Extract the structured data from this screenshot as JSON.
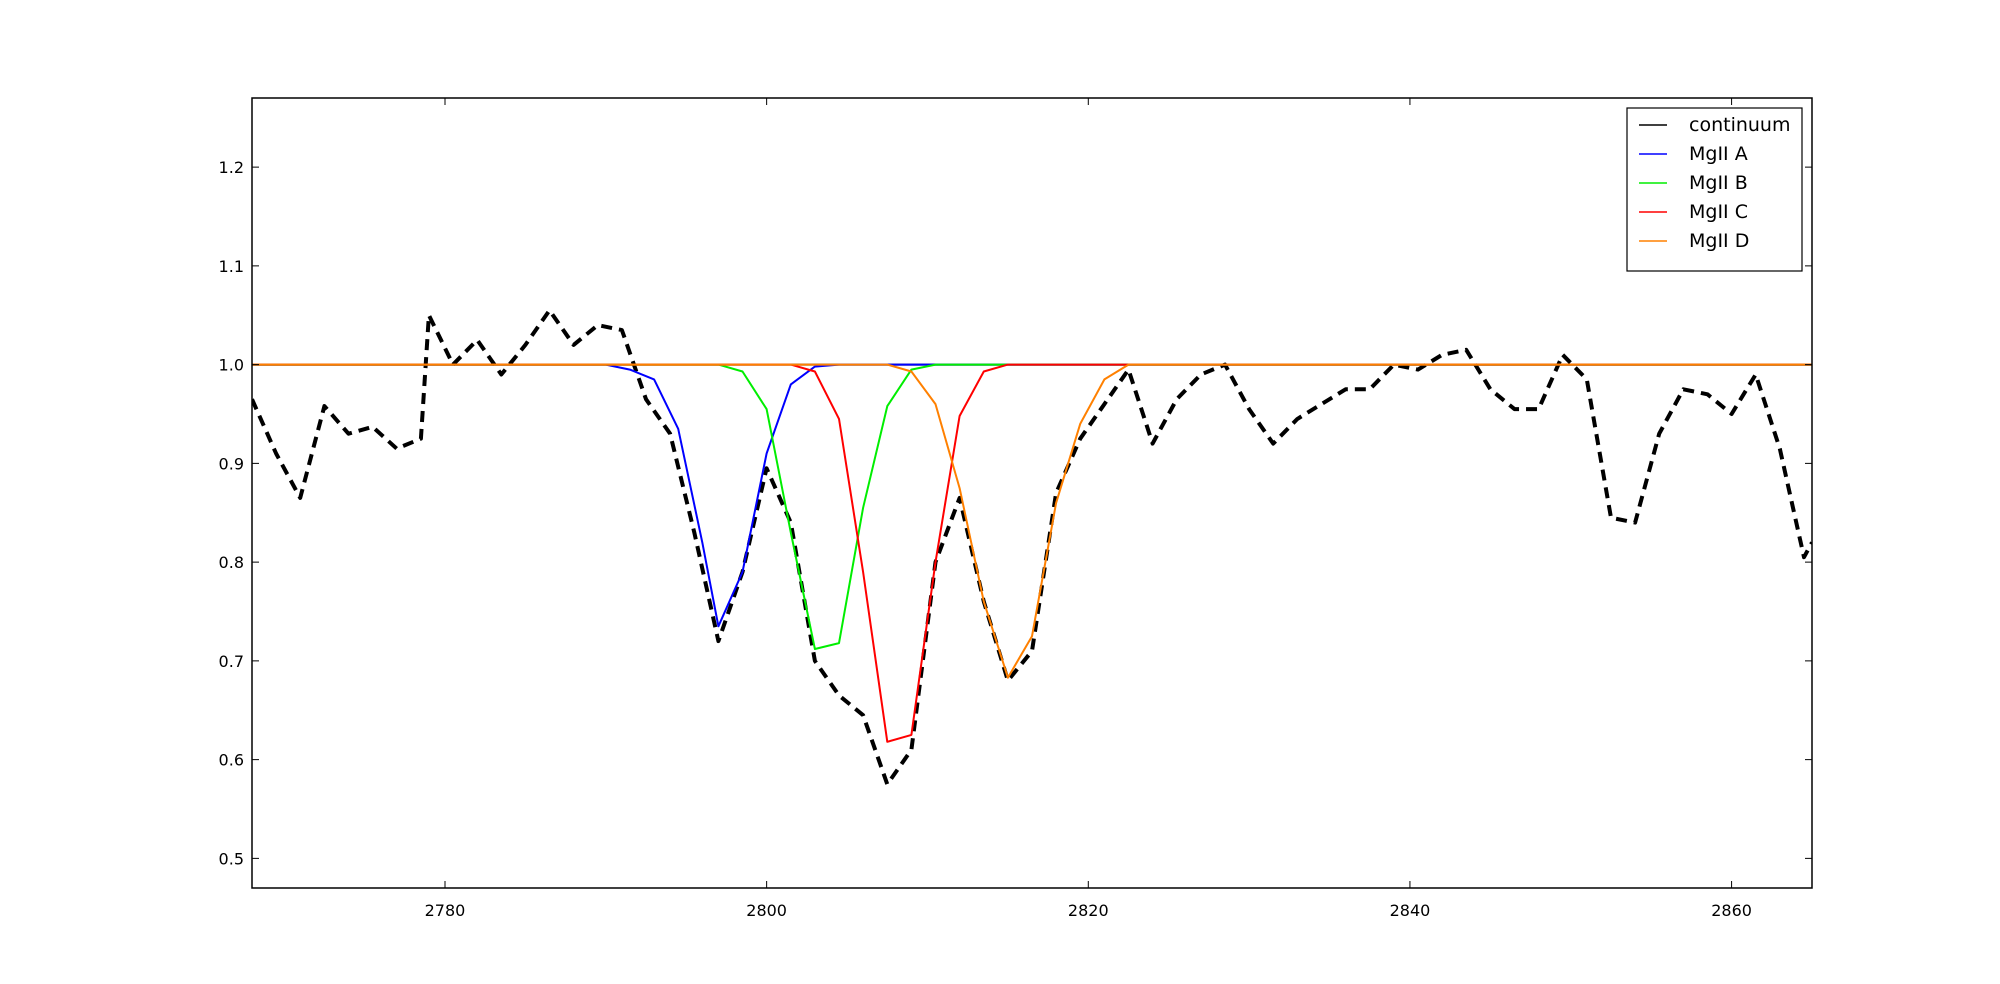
{
  "chart_data": {
    "type": "line",
    "title": "",
    "xlabel": "",
    "ylabel": "",
    "xlim": [
      2768,
      2865
    ],
    "ylim": [
      0.47,
      1.27
    ],
    "x_ticks": [
      2780,
      2800,
      2820,
      2840,
      2860
    ],
    "y_ticks": [
      0.5,
      0.6,
      0.7,
      0.8,
      0.9,
      1.0,
      1.1,
      1.2
    ],
    "x_tick_labels": [
      "2780",
      "2800",
      "2820",
      "2840",
      "2860"
    ],
    "y_tick_labels": [
      "0.5",
      "0.6",
      "0.7",
      "0.8",
      "0.9",
      "1.0",
      "1.1",
      "1.2"
    ],
    "grid": false,
    "legend_position": "top-right",
    "legend": [
      {
        "label": "continuum",
        "color": "#000000"
      },
      {
        "label": "MgII A",
        "color": "#0000ff"
      },
      {
        "label": "MgII B",
        "color": "#00ee00"
      },
      {
        "label": "MgII C",
        "color": "#ff0000"
      },
      {
        "label": "MgII D",
        "color": "#ff8000"
      }
    ],
    "observed": {
      "color": "#000000",
      "style": "dashed",
      "x": [
        2768,
        2769.5,
        2771,
        2772.5,
        2774,
        2775.5,
        2777,
        2778.5,
        2779,
        2780.5,
        2782,
        2783.5,
        2785,
        2786.5,
        2788,
        2789.5,
        2791,
        2792.5,
        2794,
        2795.5,
        2797,
        2798.5,
        2800,
        2801.5,
        2803,
        2804.5,
        2806,
        2807.5,
        2809,
        2810.5,
        2812,
        2813.5,
        2815,
        2816.5,
        2818,
        2819.5,
        2821,
        2822.5,
        2824,
        2825.5,
        2827,
        2828.5,
        2830,
        2831.5,
        2833,
        2834.5,
        2836,
        2837.5,
        2839,
        2840.5,
        2842,
        2843.5,
        2845,
        2846.5,
        2848,
        2849.5,
        2851,
        2852.5,
        2854,
        2855.5,
        2857,
        2858.5,
        2860,
        2861.5,
        2863,
        2864.5,
        2865
      ],
      "y": [
        0.965,
        0.91,
        0.865,
        0.958,
        0.93,
        0.937,
        0.915,
        0.925,
        1.05,
        1.0,
        1.025,
        0.99,
        1.02,
        1.055,
        1.02,
        1.04,
        1.035,
        0.965,
        0.93,
        0.83,
        0.72,
        0.79,
        0.895,
        0.84,
        0.7,
        0.665,
        0.645,
        0.575,
        0.61,
        0.8,
        0.865,
        0.76,
        0.68,
        0.71,
        0.87,
        0.925,
        0.96,
        0.995,
        0.92,
        0.965,
        0.99,
        1.0,
        0.955,
        0.92,
        0.945,
        0.96,
        0.975,
        0.975,
        1.0,
        0.995,
        1.01,
        1.015,
        0.975,
        0.955,
        0.955,
        1.01,
        0.985,
        0.845,
        0.84,
        0.93,
        0.975,
        0.97,
        0.95,
        0.99,
        0.915,
        0.805,
        0.82
      ]
    },
    "series": [
      {
        "name": "continuum",
        "color": "#000000",
        "x": [
          2768,
          2865
        ],
        "y": [
          1.0,
          1.0
        ]
      },
      {
        "name": "MgII A",
        "color": "#0000ff",
        "x": [
          2768,
          2790,
          2791.5,
          2793,
          2794.5,
          2796,
          2797,
          2798.5,
          2800,
          2801.5,
          2803,
          2804.5,
          2865
        ],
        "y": [
          1.0,
          1.0,
          0.995,
          0.985,
          0.935,
          0.82,
          0.735,
          0.79,
          0.91,
          0.98,
          0.998,
          1.0,
          1.0
        ]
      },
      {
        "name": "MgII B",
        "color": "#00ee00",
        "x": [
          2768,
          2797,
          2798.5,
          2800,
          2801.5,
          2803,
          2804.5,
          2806,
          2807.5,
          2809,
          2810.5,
          2865
        ],
        "y": [
          1.0,
          1.0,
          0.993,
          0.955,
          0.83,
          0.712,
          0.718,
          0.855,
          0.958,
          0.995,
          1.0,
          1.0
        ]
      },
      {
        "name": "MgII C",
        "color": "#ff0000",
        "x": [
          2768,
          2801.5,
          2803,
          2804.5,
          2806,
          2807.5,
          2809,
          2810.5,
          2812,
          2813.5,
          2815,
          2865
        ],
        "y": [
          1.0,
          1.0,
          0.993,
          0.945,
          0.79,
          0.618,
          0.625,
          0.8,
          0.948,
          0.993,
          1.0,
          1.0
        ]
      },
      {
        "name": "MgII D",
        "color": "#ff8000",
        "x": [
          2768,
          2807.5,
          2809,
          2810.5,
          2812,
          2813.5,
          2815,
          2816.5,
          2818,
          2819.5,
          2821,
          2822.5,
          2865
        ],
        "y": [
          1.0,
          1.0,
          0.993,
          0.96,
          0.875,
          0.76,
          0.683,
          0.725,
          0.86,
          0.94,
          0.985,
          1.0,
          1.0
        ]
      }
    ]
  }
}
